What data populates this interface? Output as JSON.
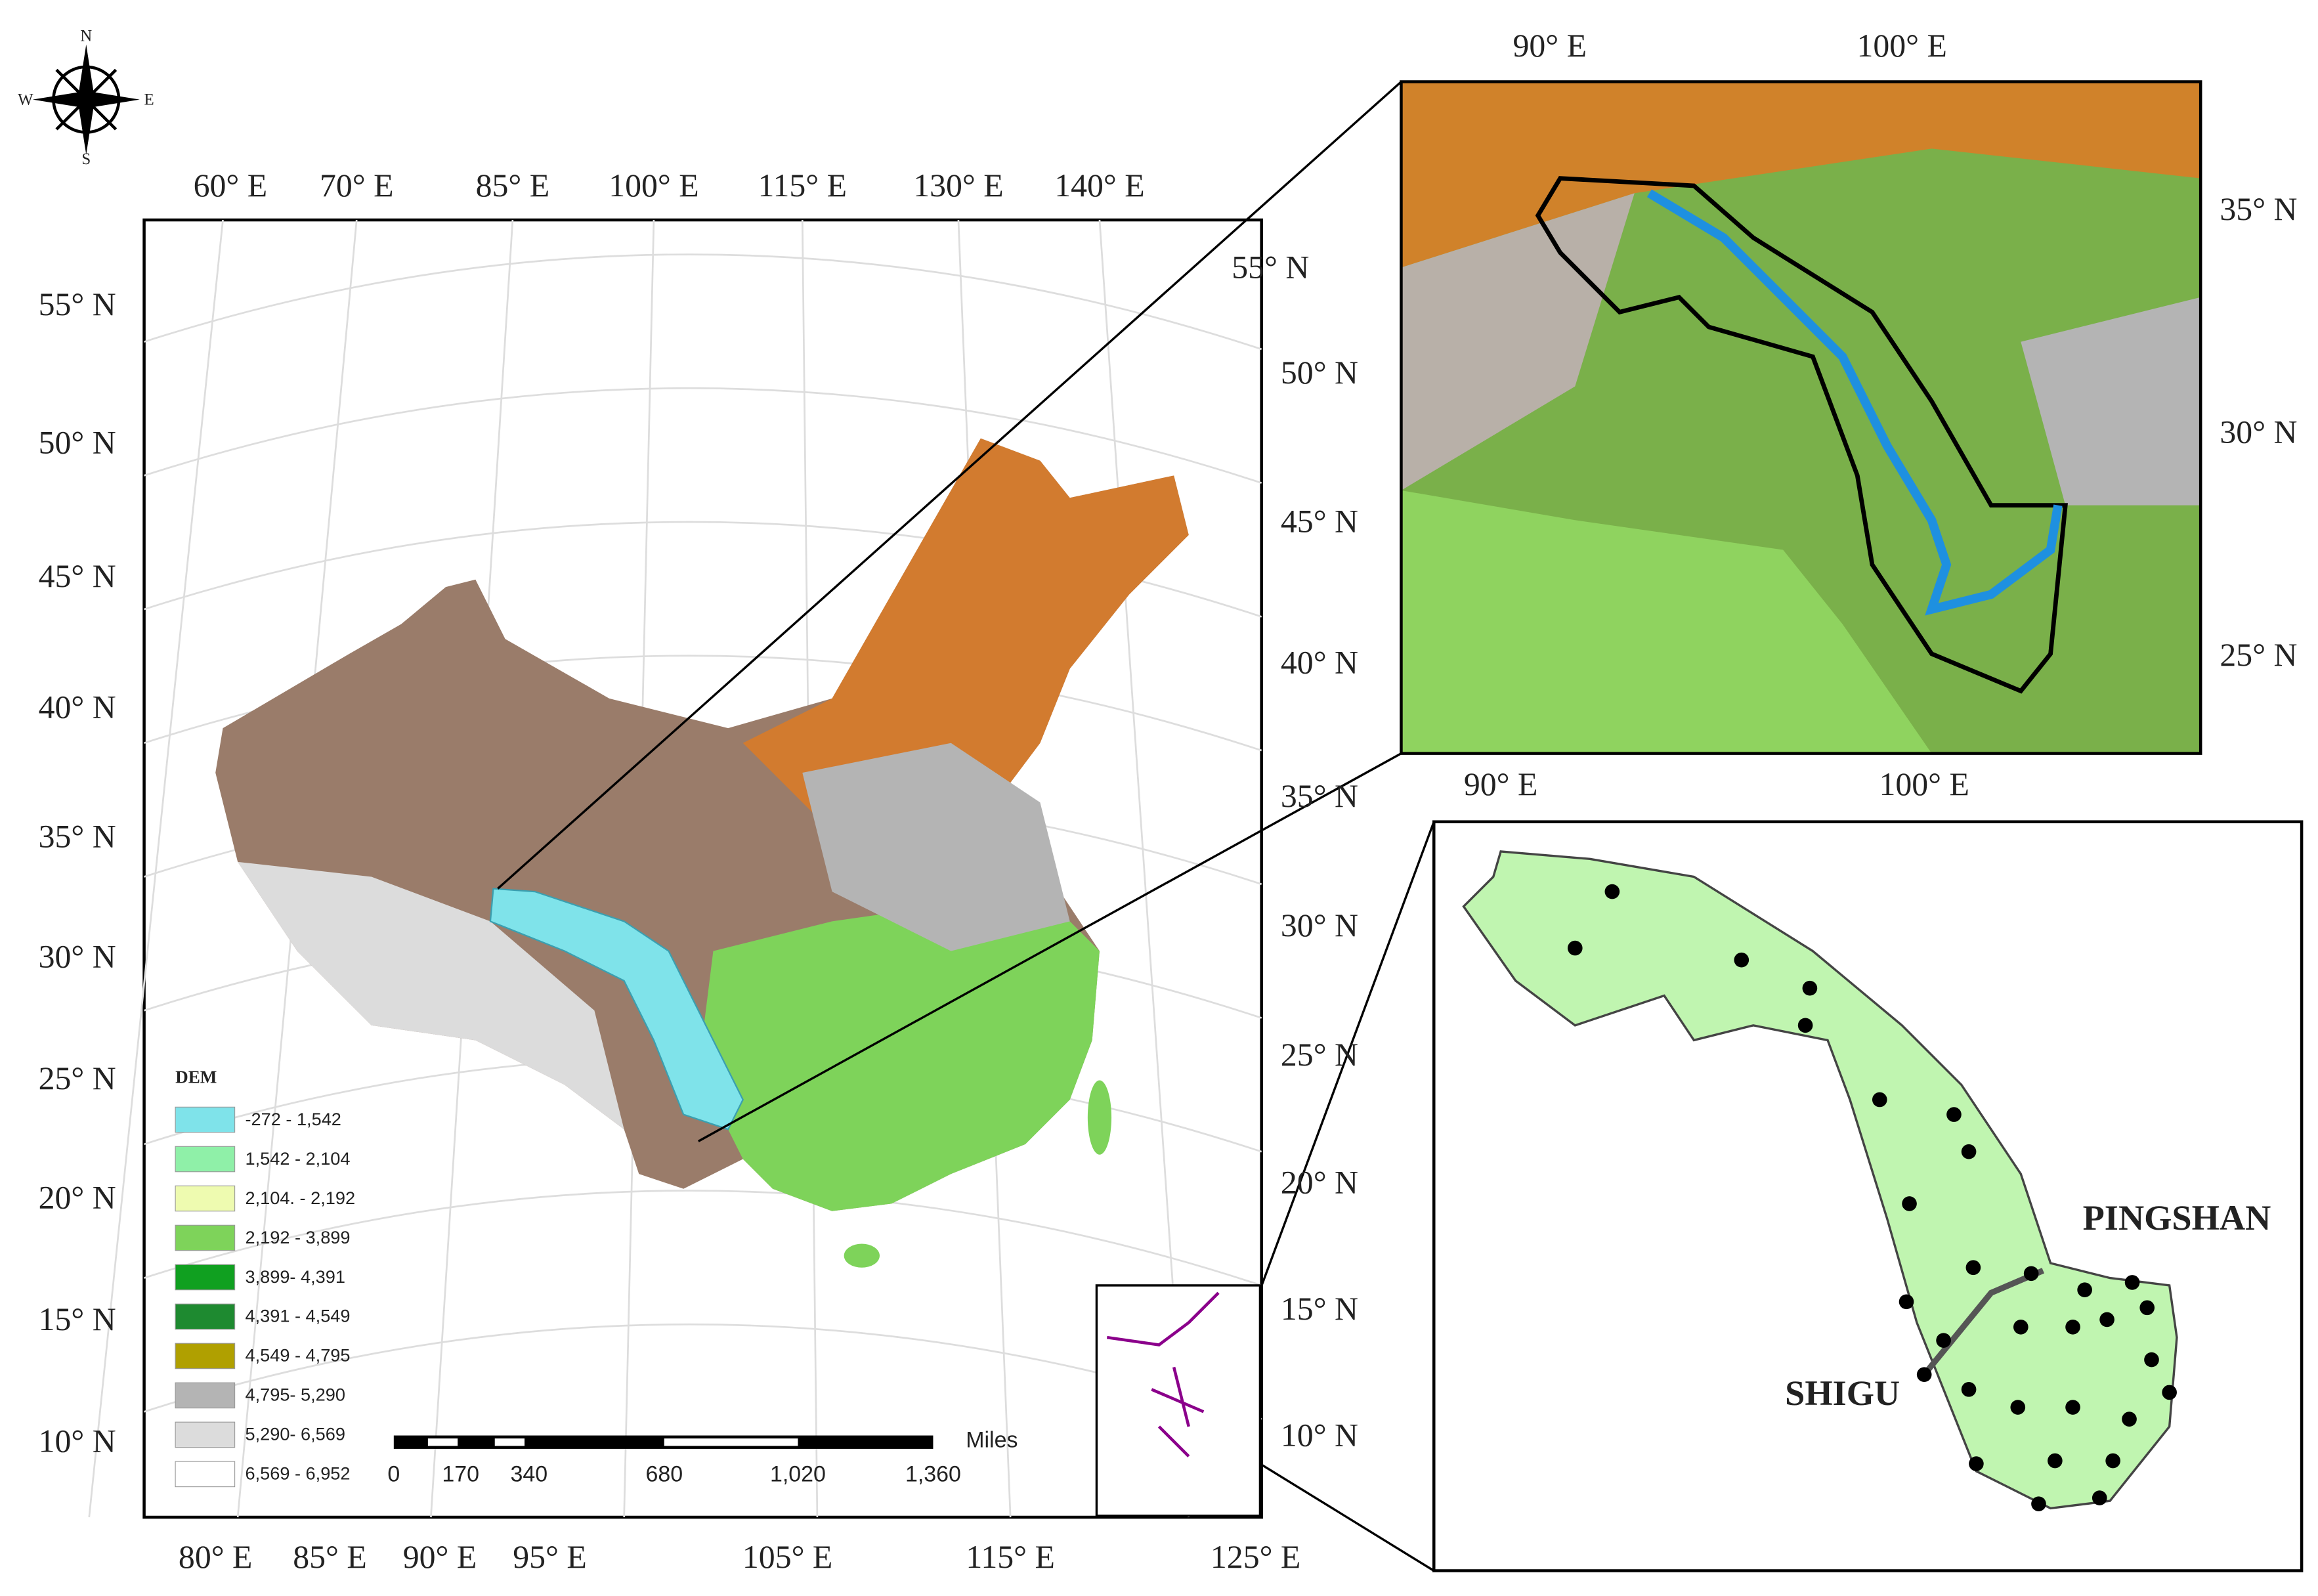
{
  "compass": {
    "north": "N",
    "south": "S",
    "east": "E",
    "west": "W"
  },
  "main_map": {
    "top_labels": [
      "60° E",
      "70° E",
      "85° E",
      "100° E",
      "115° E",
      "130° E",
      "140° E"
    ],
    "bottom_labels": [
      "80° E",
      "85° E",
      "90° E",
      "95° E",
      "105° E",
      "115° E",
      "125° E"
    ],
    "left_labels": [
      "55° N",
      "50° N",
      "45° N",
      "40° N",
      "35° N",
      "30° N",
      "25° N",
      "20° N",
      "15° N",
      "10° N"
    ],
    "right_labels": [
      "55° N",
      "50° N",
      "45° N",
      "40° N",
      "35° N",
      "30° N",
      "25° N",
      "20° N",
      "15° N",
      "10° N"
    ],
    "legend": {
      "title": "DEM",
      "items": [
        {
          "label": "-272 - 1,542",
          "color": "#7fe3ea"
        },
        {
          "label": "1,542 - 2,104",
          "color": "#8ff0a8"
        },
        {
          "label": "2,104. - 2,192",
          "color": "#eefbb0"
        },
        {
          "label": "2,192 - 3,899",
          "color": "#7ed35a"
        },
        {
          "label": "3,899- 4,391",
          "color": "#10a020"
        },
        {
          "label": "4,391 - 4,549",
          "color": "#1e8a30"
        },
        {
          "label": "4,549 - 4,795",
          "color": "#b0a000"
        },
        {
          "label": "4,795- 5,290",
          "color": "#b4b4b4"
        },
        {
          "label": "5,290- 6,569",
          "color": "#dcdcdc"
        },
        {
          "label": "6,569 - 6,952",
          "color": "#ffffff"
        }
      ]
    },
    "scale_bar": {
      "unit": "Miles",
      "labels": [
        "0",
        "170",
        "340",
        "680",
        "1,020",
        "1,360"
      ]
    }
  },
  "inset_top": {
    "top_labels": [
      "90° E",
      "100° E"
    ],
    "bottom_labels": [
      "90° E",
      "100° E"
    ],
    "right_labels": [
      "35° N",
      "30° N",
      "25° N"
    ]
  },
  "inset_bottom": {
    "labels": [
      "PINGSHAN",
      "SHIGU"
    ]
  }
}
